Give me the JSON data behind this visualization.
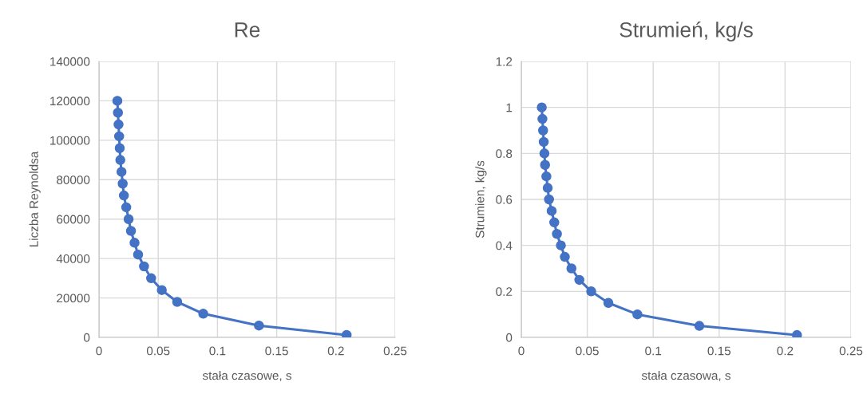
{
  "chart_data": [
    {
      "type": "line",
      "title": "Re",
      "xlabel": "stała czasowe, s",
      "ylabel": "Liczba Reynoldsa",
      "marker": "circle",
      "grid": true,
      "legend": false,
      "xlim": [
        0,
        0.25
      ],
      "xticks": [
        0,
        0.05,
        0.1,
        0.15,
        0.2,
        0.25
      ],
      "ylim": [
        0,
        140000
      ],
      "yticks": [
        0,
        20000,
        40000,
        60000,
        80000,
        100000,
        120000,
        140000
      ],
      "series": [
        {
          "color": "#4472c4",
          "x": [
            0.0155,
            0.016,
            0.0165,
            0.017,
            0.0175,
            0.018,
            0.019,
            0.02,
            0.021,
            0.023,
            0.025,
            0.027,
            0.03,
            0.033,
            0.038,
            0.044,
            0.053,
            0.066,
            0.088,
            0.135,
            0.209
          ],
          "values": [
            120000,
            114000,
            108000,
            102000,
            96000,
            90000,
            84000,
            78000,
            72000,
            66000,
            60000,
            54000,
            48000,
            42000,
            36000,
            30000,
            24000,
            18000,
            12000,
            6000,
            1200
          ]
        }
      ]
    },
    {
      "type": "line",
      "title": "Strumień, kg/s",
      "xlabel": "stała czasowa, s",
      "ylabel": "Strumien, kg/s",
      "marker": "circle",
      "grid": true,
      "legend": false,
      "xlim": [
        0,
        0.25
      ],
      "xticks": [
        0,
        0.05,
        0.1,
        0.15,
        0.2,
        0.25
      ],
      "ylim": [
        0,
        1.2
      ],
      "yticks": [
        0,
        0.2,
        0.4,
        0.6,
        0.8,
        1,
        1.2
      ],
      "series": [
        {
          "color": "#4472c4",
          "x": [
            0.0155,
            0.016,
            0.0165,
            0.017,
            0.0175,
            0.018,
            0.019,
            0.02,
            0.021,
            0.023,
            0.025,
            0.027,
            0.03,
            0.033,
            0.038,
            0.044,
            0.053,
            0.066,
            0.088,
            0.135,
            0.209
          ],
          "values": [
            1,
            0.95,
            0.9,
            0.85,
            0.8,
            0.75,
            0.7,
            0.65,
            0.6,
            0.55,
            0.5,
            0.45,
            0.4,
            0.35,
            0.3,
            0.25,
            0.2,
            0.15,
            0.1,
            0.05,
            0.01
          ]
        }
      ]
    }
  ]
}
